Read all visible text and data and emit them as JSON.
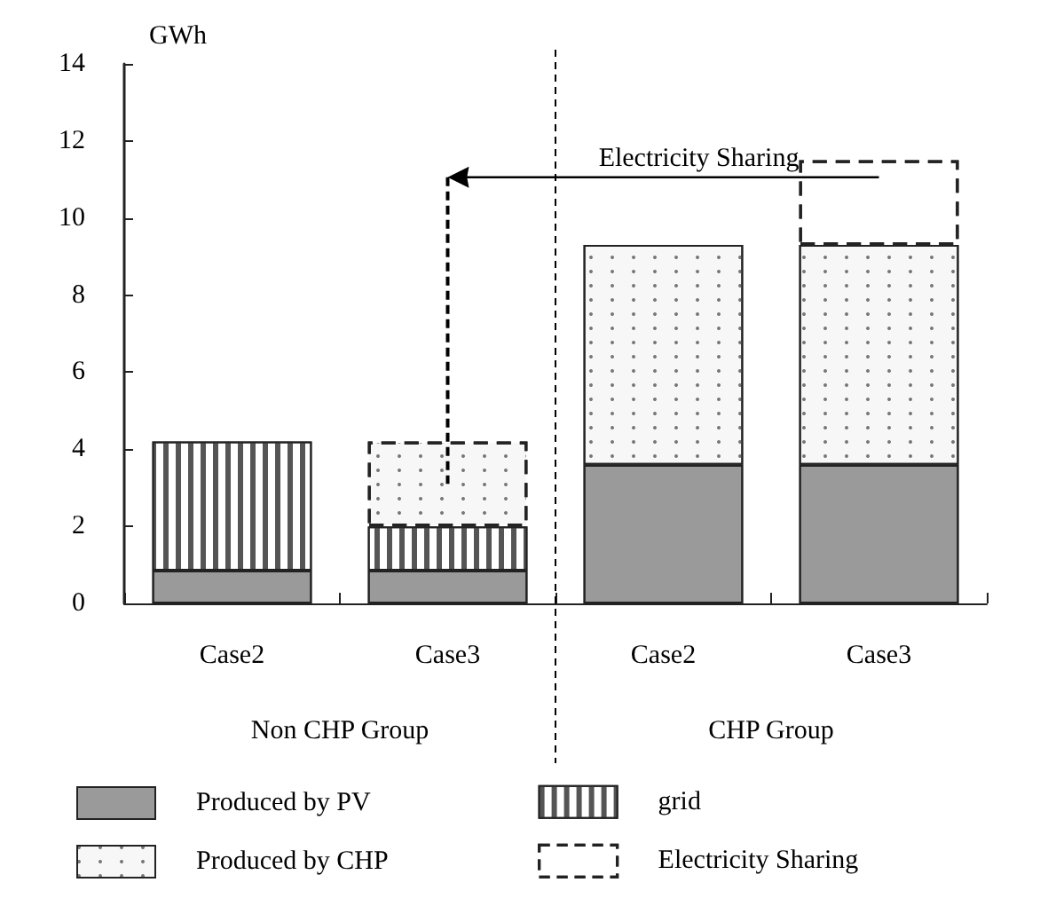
{
  "chart_data": {
    "type": "bar",
    "stacked": true,
    "ylabel": "GWh",
    "categories": [
      "Case2",
      "Case3",
      "Case2",
      "Case3"
    ],
    "series": [
      {
        "name": "Produced by PV",
        "color": "#9a9a9a",
        "values": [
          0.85,
          0.85,
          3.6,
          3.6
        ]
      },
      {
        "name": "grid",
        "color": "#ffffff",
        "values": [
          3.35,
          1.15,
          null,
          null
        ]
      },
      {
        "name": "Produced by CHP",
        "color": "#f7f7f7",
        "values": [
          null,
          null,
          5.7,
          5.7
        ]
      },
      {
        "name": "Electricity Sharing",
        "color": "#ffffff",
        "colors": [
          null,
          "#f7f7f7",
          null,
          "#ffffff"
        ],
        "values": [
          null,
          2.2,
          null,
          2.2
        ]
      }
    ],
    "ylim": [
      0,
      14
    ],
    "yticks": [
      0,
      2,
      4,
      6,
      8,
      10,
      12,
      14
    ],
    "grid": false,
    "legend": "bottom",
    "annotations": [
      "Electricity Sharing",
      "Non CHP Group",
      "CHP Group"
    ]
  }
}
